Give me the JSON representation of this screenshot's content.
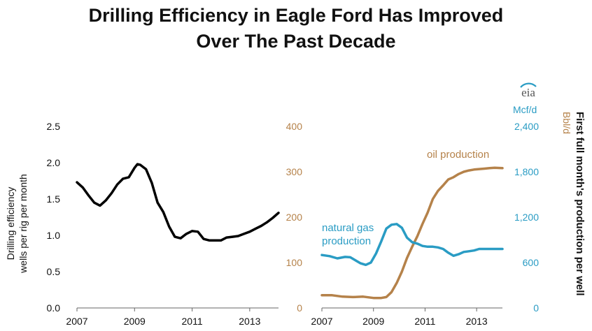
{
  "title_lines": [
    "Drilling Efficiency in Eagle Ford Has Improved",
    "Over The Past Decade"
  ],
  "logo": "eia",
  "colors": {
    "efficiency": "#000000",
    "oil": "#b5824a",
    "gas": "#2a9cc4",
    "text": "#111111"
  },
  "chart_data": [
    {
      "type": "line",
      "ylabel_lines": [
        "Drilling efficiency",
        "wells per rig per month"
      ],
      "ylim": [
        0,
        2.5
      ],
      "yticks": [
        "0.0",
        "0.5",
        "1.0",
        "1.5",
        "2.0",
        "2.5"
      ],
      "xlim": [
        2007,
        2014
      ],
      "xticks": [
        "2007",
        "2009",
        "2011",
        "2013"
      ],
      "series": [
        {
          "x": [
            2007.0,
            2007.2,
            2007.4,
            2007.6,
            2007.8,
            2008.0,
            2008.2,
            2008.4,
            2008.6,
            2008.8,
            2009.0,
            2009.1,
            2009.2,
            2009.4,
            2009.6,
            2009.8,
            2010.0,
            2010.2,
            2010.4,
            2010.6,
            2010.8,
            2011.0,
            2011.2,
            2011.4,
            2011.6,
            2011.8,
            2012.0,
            2012.2,
            2012.4,
            2012.6,
            2012.8,
            2013.0,
            2013.2,
            2013.4,
            2013.6,
            2013.8,
            2014.0
          ],
          "values": [
            1.73,
            1.66,
            1.55,
            1.45,
            1.41,
            1.48,
            1.58,
            1.7,
            1.78,
            1.8,
            1.93,
            1.98,
            1.97,
            1.91,
            1.72,
            1.45,
            1.32,
            1.12,
            0.98,
            0.96,
            1.02,
            1.06,
            1.05,
            0.95,
            0.93,
            0.93,
            0.93,
            0.97,
            0.98,
            0.99,
            1.02,
            1.05,
            1.09,
            1.13,
            1.18,
            1.24,
            1.31
          ]
        }
      ]
    },
    {
      "type": "line",
      "ylabel_left": "Bbl/d",
      "ylabel_right": "Mcf/d",
      "ylabel_side": "First full month's production  per well",
      "xlim": [
        2007,
        2014
      ],
      "xticks": [
        "2007",
        "2009",
        "2011",
        "2013"
      ],
      "ylim_left": [
        0,
        400
      ],
      "yticks_left": [
        "0",
        "100",
        "200",
        "300",
        "400"
      ],
      "ylim_right": [
        0,
        2400
      ],
      "yticks_right": [
        "0",
        "600",
        "1,200",
        "1,800",
        "2,400"
      ],
      "series": [
        {
          "name": "oil production",
          "axis": "left",
          "x": [
            2007.0,
            2007.4,
            2007.8,
            2008.2,
            2008.6,
            2009.0,
            2009.3,
            2009.5,
            2009.7,
            2009.9,
            2010.1,
            2010.3,
            2010.5,
            2010.7,
            2010.9,
            2011.1,
            2011.3,
            2011.5,
            2011.7,
            2011.9,
            2012.1,
            2012.3,
            2012.5,
            2012.7,
            2012.9,
            2013.1,
            2013.3,
            2013.5,
            2013.7,
            2014.0
          ],
          "values": [
            28,
            28,
            25,
            24,
            25,
            22,
            22,
            24,
            35,
            55,
            80,
            110,
            135,
            158,
            185,
            210,
            240,
            258,
            270,
            283,
            288,
            295,
            300,
            303,
            305,
            306,
            307,
            308,
            309,
            308
          ]
        },
        {
          "name": "natural gas production",
          "axis": "right",
          "x": [
            2007.0,
            2007.3,
            2007.6,
            2007.9,
            2008.1,
            2008.3,
            2008.5,
            2008.7,
            2008.9,
            2009.1,
            2009.3,
            2009.5,
            2009.7,
            2009.9,
            2010.1,
            2010.3,
            2010.5,
            2010.7,
            2010.9,
            2011.1,
            2011.3,
            2011.5,
            2011.7,
            2011.9,
            2012.1,
            2012.3,
            2012.5,
            2012.7,
            2012.9,
            2013.1,
            2013.3,
            2013.5,
            2013.7,
            2014.0
          ],
          "values": [
            700,
            685,
            655,
            675,
            670,
            630,
            590,
            570,
            600,
            720,
            880,
            1050,
            1100,
            1110,
            1060,
            930,
            870,
            850,
            820,
            810,
            810,
            800,
            780,
            730,
            690,
            710,
            740,
            750,
            760,
            780,
            780,
            780,
            780,
            780
          ]
        }
      ]
    }
  ]
}
